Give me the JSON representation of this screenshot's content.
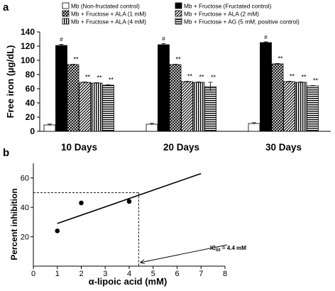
{
  "chart_data": [
    {
      "panel": "a",
      "type": "bar",
      "ylabel": "Free iron (µg/dL)",
      "ylim": [
        0,
        140
      ],
      "yticks": [
        0,
        20,
        40,
        60,
        80,
        100,
        120,
        140
      ],
      "categories": [
        "10 Days",
        "20 Days",
        "30 Days"
      ],
      "legend": [
        "Mb (Non-fructated control)",
        "Mb + Fructose (Fructated control)",
        "Mb + Fructose + ALA (1 mM)",
        "Mb + Fructose + ALA (2 mM)",
        "Mb + Fructose + ALA (4 mM)",
        "Mb + Fructose + AG (5 mM; positive control)"
      ],
      "series": [
        {
          "pattern": "white",
          "values": [
            9,
            10,
            11
          ],
          "errors": [
            1.2,
            1.2,
            1.2
          ],
          "marks": [
            "",
            "",
            ""
          ]
        },
        {
          "pattern": "black",
          "values": [
            121,
            122,
            125
          ],
          "errors": [
            1.5,
            1.5,
            1.0
          ],
          "marks": [
            "#",
            "#",
            "#"
          ]
        },
        {
          "pattern": "crosshatch",
          "values": [
            94,
            94,
            95
          ],
          "errors": [
            0.5,
            0.5,
            0.5
          ],
          "marks": [
            "**",
            "**",
            "**"
          ]
        },
        {
          "pattern": "diagonal",
          "values": [
            69,
            70,
            70
          ],
          "errors": [
            0.5,
            0.5,
            0.5
          ],
          "marks": [
            "**",
            "**",
            "**"
          ]
        },
        {
          "pattern": "vertical",
          "values": [
            68,
            69,
            69
          ],
          "errors": [
            0.5,
            0.5,
            0.5
          ],
          "marks": [
            "**",
            "**",
            "**"
          ]
        },
        {
          "pattern": "horizontal",
          "values": [
            65,
            63,
            64
          ],
          "errors": [
            0.5,
            6.0,
            0.5
          ],
          "marks": [
            "**",
            "**",
            "**"
          ]
        }
      ]
    },
    {
      "panel": "b",
      "type": "scatter",
      "xlabel": "α-lipoic acid (mM)",
      "ylabel": "Percent inhibition",
      "xlim": [
        0,
        8
      ],
      "ylim": [
        0,
        70
      ],
      "xticks": [
        0,
        1,
        2,
        3,
        4,
        5,
        6,
        7,
        8
      ],
      "yticks": [
        20,
        40,
        60
      ],
      "points": [
        {
          "x": 1,
          "y": 24
        },
        {
          "x": 2,
          "y": 43
        },
        {
          "x": 4,
          "y": 44
        }
      ],
      "fit_line": {
        "x1": 1,
        "y1": 29,
        "x2": 7,
        "y2": 63
      },
      "reference": {
        "x": 4.4,
        "y": 50
      },
      "annotation": {
        "prefix": "IC",
        "sub": "50",
        "suffix": " = 4.4 mM"
      }
    }
  ]
}
